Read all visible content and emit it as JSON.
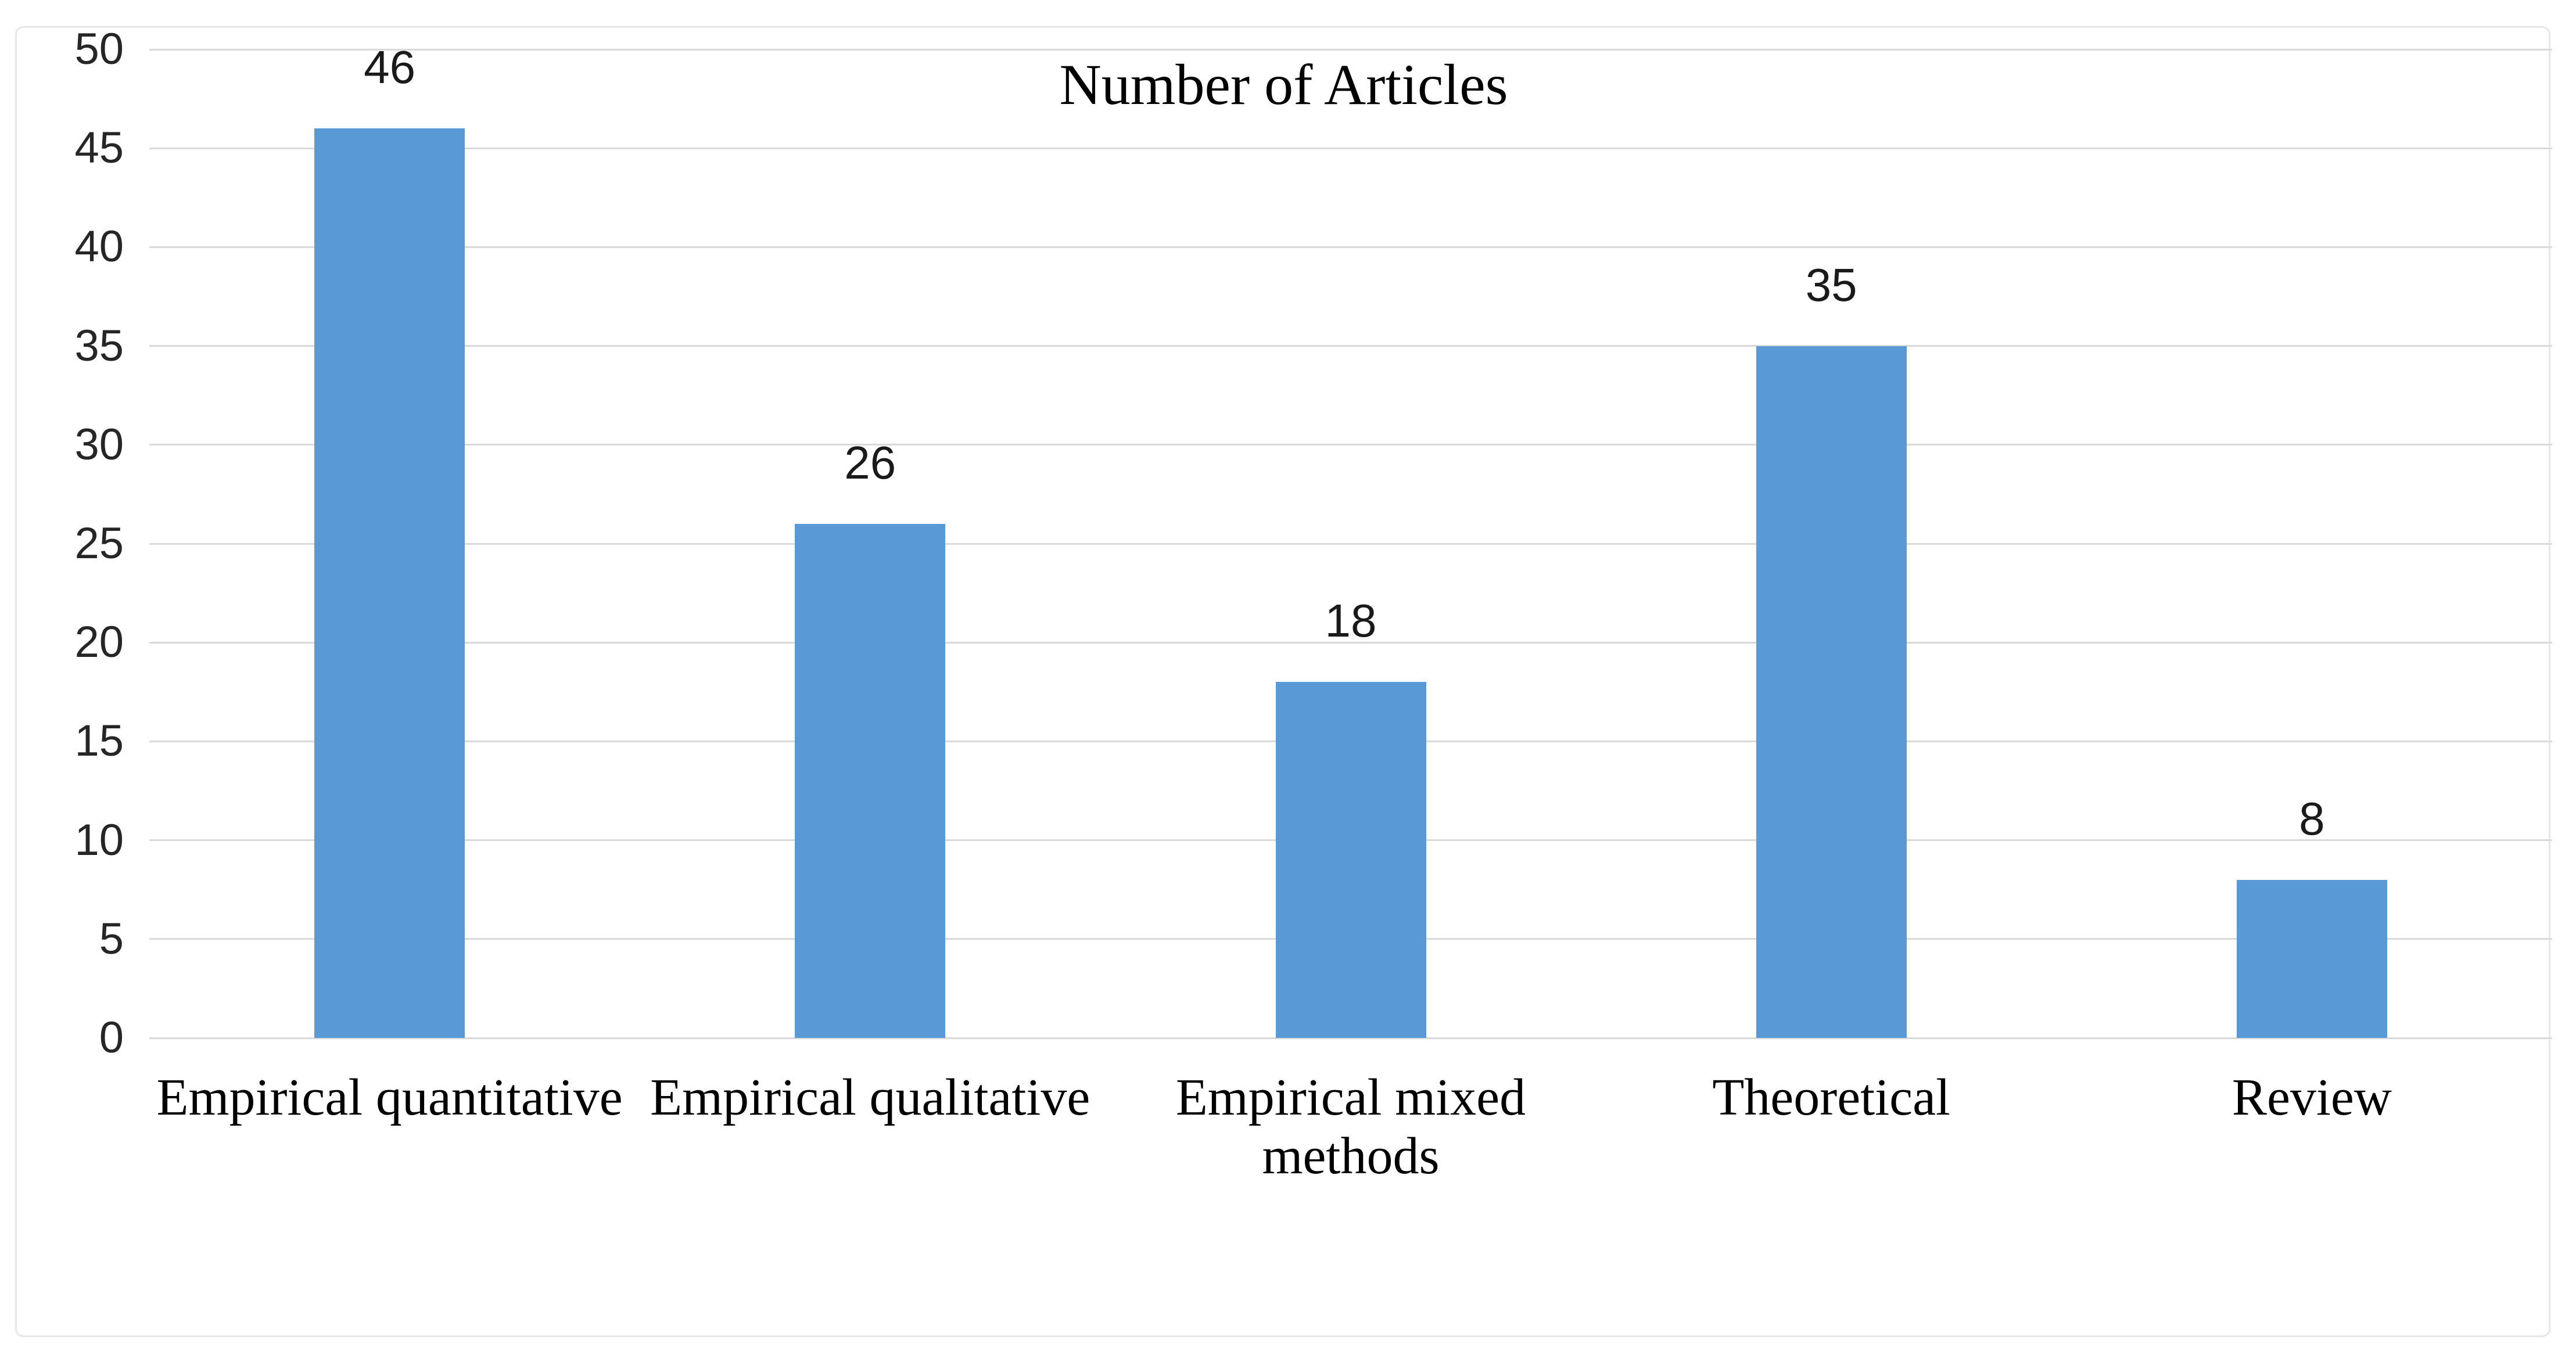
{
  "chart_data": {
    "type": "bar",
    "title": "Number of Articles",
    "categories": [
      "Empirical quantitative",
      "Empirical qualitative",
      "Empirical mixed methods",
      "Theoretical",
      "Review"
    ],
    "values": [
      46,
      26,
      18,
      35,
      8
    ],
    "data_labels": [
      "46",
      "26",
      "18",
      "35",
      "8"
    ],
    "xlabel": "",
    "ylabel": "",
    "ylim": [
      0,
      50
    ],
    "yticks": [
      0,
      5,
      10,
      15,
      20,
      25,
      30,
      35,
      40,
      45,
      50
    ],
    "grid": "horizontal",
    "legend": "none",
    "colors": {
      "bar": "#5899D6",
      "gridline": "#D9D9D9",
      "frame_border": "#E7E7E7",
      "axis_text": "#262626",
      "value_text": "#1A1A1A",
      "title_text": "#000000",
      "category_text": "#000000",
      "background": "#FFFFFF"
    }
  }
}
